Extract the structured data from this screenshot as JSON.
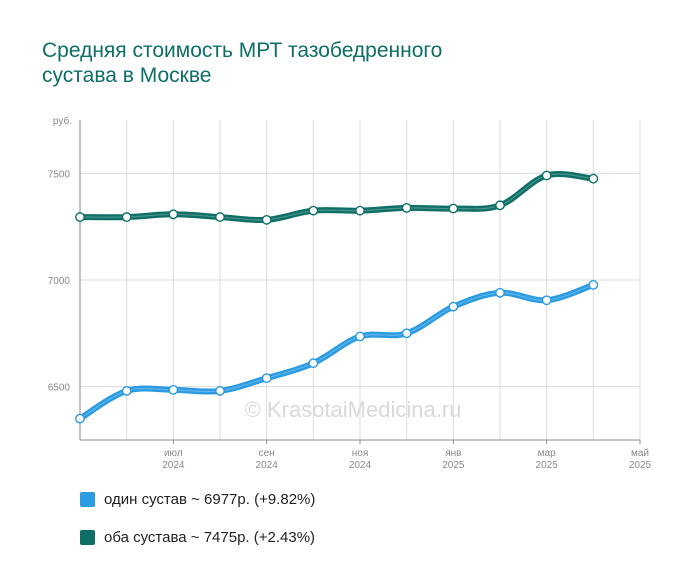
{
  "title_lines": [
    "Средняя стоимость МРТ тазобедренного",
    "сустава в Москве"
  ],
  "watermark": "© KrasotaiMedicina.ru",
  "legend": [
    {
      "text": "один сустав ~ 6977р. (+9.82%)",
      "color": "#2b9be2"
    },
    {
      "text": "оба сустава ~ 7475р. (+2.43%)",
      "color": "#0e6f66"
    }
  ],
  "chart_data": {
    "type": "line",
    "x": [
      "2024-05",
      "2024-06",
      "2024-07",
      "2024-08",
      "2024-09",
      "2024-10",
      "2024-11",
      "2024-12",
      "2025-01",
      "2025-02",
      "2025-03",
      "2025-04",
      "2025-05"
    ],
    "x_tick_labels": [
      {
        "at": "2024-07",
        "month": "июл",
        "year": "2024"
      },
      {
        "at": "2024-09",
        "month": "сен",
        "year": "2024"
      },
      {
        "at": "2024-11",
        "month": "ноя",
        "year": "2024"
      },
      {
        "at": "2025-01",
        "month": "янв",
        "year": "2025"
      },
      {
        "at": "2025-03",
        "month": "мар",
        "year": "2025"
      },
      {
        "at": "2025-05",
        "month": "май",
        "year": "2025"
      }
    ],
    "y_unit_label": "руб.",
    "y_ticks": [
      6500,
      7000,
      7500
    ],
    "ylim": [
      6250,
      7750
    ],
    "grid": true,
    "series": [
      {
        "name": "один сустав",
        "color": "#2b9be2",
        "values": [
          6350,
          6480,
          6485,
          6480,
          6540,
          6610,
          6735,
          6750,
          6875,
          6940,
          6905,
          6977,
          null
        ]
      },
      {
        "name": "оба сустава",
        "color": "#0e6f66",
        "values": [
          7295,
          7295,
          7308,
          7295,
          7282,
          7325,
          7325,
          7338,
          7335,
          7350,
          7490,
          7475,
          null
        ]
      }
    ]
  }
}
